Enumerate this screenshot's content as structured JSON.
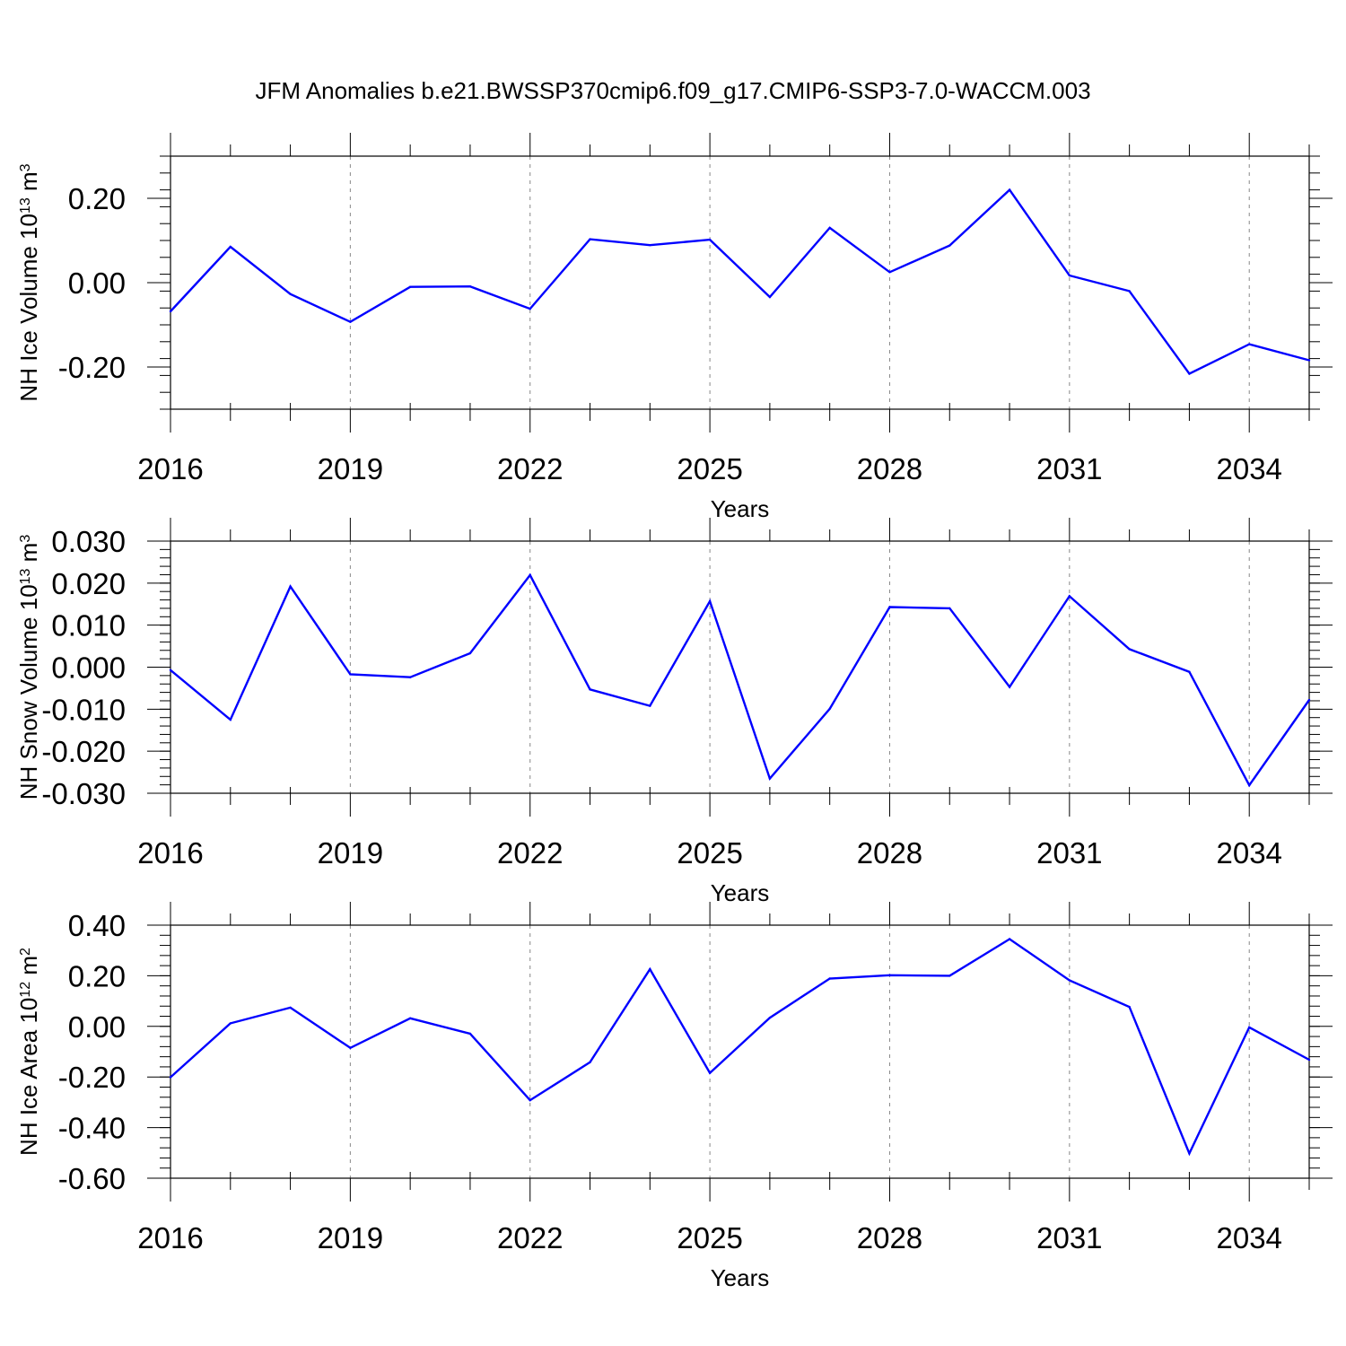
{
  "figure": {
    "title": "JFM Anomalies b.e21.BWSSP370cmip6.f09_g17.CMIP6-SSP3-7.0-WACCM.003",
    "line_color": "#0000ff",
    "grid_color": "#888888"
  },
  "chart_data": [
    {
      "type": "line",
      "title": "",
      "xlabel": "Years",
      "ylabel": {
        "main": "NH Ice Volume 10",
        "exp": "13",
        "unit": " m",
        "unit_exp": "3"
      },
      "xlim": [
        2016,
        2035
      ],
      "ylim": [
        -0.3,
        0.3
      ],
      "grid": "x-dashed",
      "xticks": [
        2016,
        2019,
        2022,
        2025,
        2028,
        2031,
        2034
      ],
      "xtick_labels": [
        "2016",
        "2019",
        "2022",
        "2025",
        "2028",
        "2031",
        "2034"
      ],
      "yticks": [
        0.2,
        0.0,
        -0.2
      ],
      "ytick_labels": [
        "0.20",
        "0.00",
        "-0.20"
      ],
      "yminor_step": 0.04,
      "x": [
        2016,
        2017,
        2018,
        2019,
        2020,
        2021,
        2022,
        2023,
        2024,
        2025,
        2026,
        2027,
        2028,
        2029,
        2030,
        2031,
        2032,
        2033,
        2034,
        2035
      ],
      "series": [
        {
          "values": [
            -0.068,
            0.085,
            -0.027,
            -0.093,
            -0.01,
            -0.009,
            -0.062,
            0.103,
            0.089,
            0.102,
            -0.034,
            0.13,
            0.025,
            0.088,
            0.22,
            0.017,
            -0.02,
            -0.216,
            -0.146,
            -0.184
          ]
        }
      ]
    },
    {
      "type": "line",
      "title": "",
      "xlabel": "Years",
      "ylabel": {
        "main": "NH Snow Volume 10",
        "exp": "13",
        "unit": " m",
        "unit_exp": "3"
      },
      "xlim": [
        2016,
        2035
      ],
      "ylim": [
        -0.03,
        0.03
      ],
      "grid": "x-dashed",
      "xticks": [
        2016,
        2019,
        2022,
        2025,
        2028,
        2031,
        2034
      ],
      "xtick_labels": [
        "2016",
        "2019",
        "2022",
        "2025",
        "2028",
        "2031",
        "2034"
      ],
      "yticks": [
        0.03,
        0.02,
        0.01,
        0.0,
        -0.01,
        -0.02,
        -0.03
      ],
      "ytick_labels": [
        "0.030",
        "0.020",
        "0.010",
        "0.000",
        "-0.010",
        "-0.020",
        "-0.030"
      ],
      "yminor_step": 0.002,
      "x": [
        2016,
        2017,
        2018,
        2019,
        2020,
        2021,
        2022,
        2023,
        2024,
        2025,
        2026,
        2027,
        2028,
        2029,
        2030,
        2031,
        2032,
        2033,
        2034,
        2035
      ],
      "series": [
        {
          "values": [
            -0.0007,
            -0.0125,
            0.0192,
            -0.0017,
            -0.0024,
            0.0033,
            0.0219,
            -0.0053,
            -0.0092,
            0.0157,
            -0.0265,
            -0.0099,
            0.0143,
            0.014,
            -0.0047,
            0.0169,
            0.0043,
            -0.0011,
            -0.0281,
            -0.0078
          ]
        }
      ]
    },
    {
      "type": "line",
      "title": "",
      "xlabel": "Years",
      "ylabel": {
        "main": "NH Ice Area 10",
        "exp": "12",
        "unit": " m",
        "unit_exp": "2"
      },
      "xlim": [
        2016,
        2035
      ],
      "ylim": [
        -0.6,
        0.4
      ],
      "grid": "x-dashed",
      "xticks": [
        2016,
        2019,
        2022,
        2025,
        2028,
        2031,
        2034
      ],
      "xtick_labels": [
        "2016",
        "2019",
        "2022",
        "2025",
        "2028",
        "2031",
        "2034"
      ],
      "yticks": [
        0.4,
        0.2,
        0.0,
        -0.2,
        -0.4,
        -0.6
      ],
      "ytick_labels": [
        "0.40",
        "0.20",
        "0.00",
        "-0.20",
        "-0.40",
        "-0.60"
      ],
      "yminor_step": 0.04,
      "x": [
        2016,
        2017,
        2018,
        2019,
        2020,
        2021,
        2022,
        2023,
        2024,
        2025,
        2026,
        2027,
        2028,
        2029,
        2030,
        2031,
        2032,
        2033,
        2034,
        2035
      ],
      "series": [
        {
          "values": [
            -0.201,
            0.012,
            0.074,
            -0.085,
            0.032,
            -0.029,
            -0.292,
            -0.142,
            0.226,
            -0.184,
            0.034,
            0.189,
            0.202,
            0.2,
            0.345,
            0.182,
            0.077,
            -0.502,
            -0.004,
            -0.132
          ]
        }
      ]
    }
  ]
}
